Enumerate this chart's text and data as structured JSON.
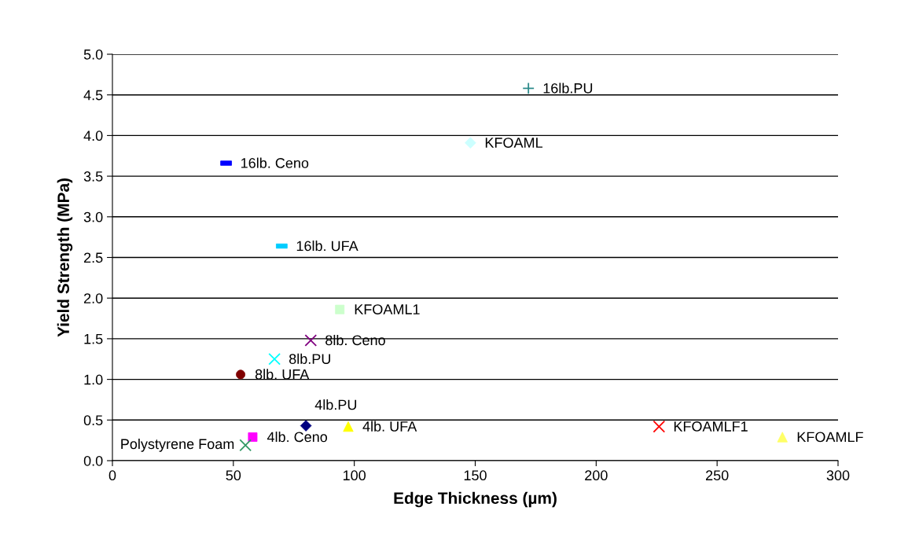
{
  "chart_data": {
    "type": "scatter",
    "xlabel": "Edge Thickness (µm)",
    "ylabel": "Yield Strength (MPa)",
    "xlim": [
      0,
      300
    ],
    "xticks": [
      0,
      50,
      100,
      150,
      200,
      250,
      300
    ],
    "ylim": [
      0,
      5.0
    ],
    "yticks": [
      {
        "value": 0,
        "label": "0.0"
      },
      {
        "value": 0.5,
        "label": "0.5"
      },
      {
        "value": 1.0,
        "label": "1.0"
      },
      {
        "value": 1.5,
        "label": "1.5"
      },
      {
        "value": 2.0,
        "label": "2.0"
      },
      {
        "value": 2.5,
        "label": "2.5"
      },
      {
        "value": 3.0,
        "label": "3.0"
      },
      {
        "value": 3.5,
        "label": "3.5"
      },
      {
        "value": 4.0,
        "label": "4.0"
      },
      {
        "value": 4.5,
        "label": "4.5"
      },
      {
        "value": 5.0,
        "label": "5.0"
      }
    ],
    "grid": "y",
    "series": [
      {
        "name": "16lb.PU",
        "color": "#2e8b8b",
        "marker": "plus",
        "x": [
          172
        ],
        "values": [
          4.58
        ]
      },
      {
        "name": "KFOAML",
        "color": "#ccffff",
        "marker": "diamond",
        "x": [
          148
        ],
        "values": [
          3.91
        ]
      },
      {
        "name": "16lb. Ceno",
        "color": "#0000ff",
        "x": [
          47
        ],
        "values": [
          3.66
        ]
      },
      {
        "name": "16lb. UFA",
        "color": "#00ccff",
        "x": [
          70
        ],
        "values": [
          2.64
        ]
      },
      {
        "name": "KFOAML1",
        "color": "#ccffcc",
        "marker": "square",
        "x": [
          94
        ],
        "values": [
          1.86
        ]
      },
      {
        "name": "8lb. Ceno",
        "color": "#800080",
        "marker": "cross",
        "x": [
          82
        ],
        "values": [
          1.48
        ]
      },
      {
        "name": "8lb.PU",
        "color": "#00ffff",
        "marker": "cross",
        "x": [
          67
        ],
        "values": [
          1.25
        ]
      },
      {
        "name": "8lb. UFA",
        "color": "#800000",
        "marker": "circle",
        "x": [
          53
        ],
        "values": [
          1.06
        ]
      },
      {
        "name": "KFOAMLF1",
        "color": "#ff0000",
        "marker": "cross",
        "x": [
          226
        ],
        "values": [
          0.42
        ]
      },
      {
        "name": "KFOAMLF",
        "color": "#ffff66",
        "marker": "triangle",
        "x": [
          277
        ],
        "values": [
          0.29
        ]
      },
      {
        "name": "4lb. UFA",
        "color": "#ffff00",
        "marker": "triangle",
        "x": [
          97.5
        ],
        "values": [
          0.42
        ]
      },
      {
        "name": "4lb.PU",
        "color": "#000080",
        "marker": "diamond",
        "x": [
          80
        ],
        "values": [
          0.43
        ]
      },
      {
        "name": "4lb. Ceno",
        "color": "#ff00ff",
        "marker": "square",
        "x": [
          58
        ],
        "values": [
          0.29
        ]
      },
      {
        "name": "Polystyrene Foam",
        "color": "#339966",
        "marker": "cross",
        "x": [
          55
        ],
        "values": [
          0.19
        ]
      }
    ]
  }
}
